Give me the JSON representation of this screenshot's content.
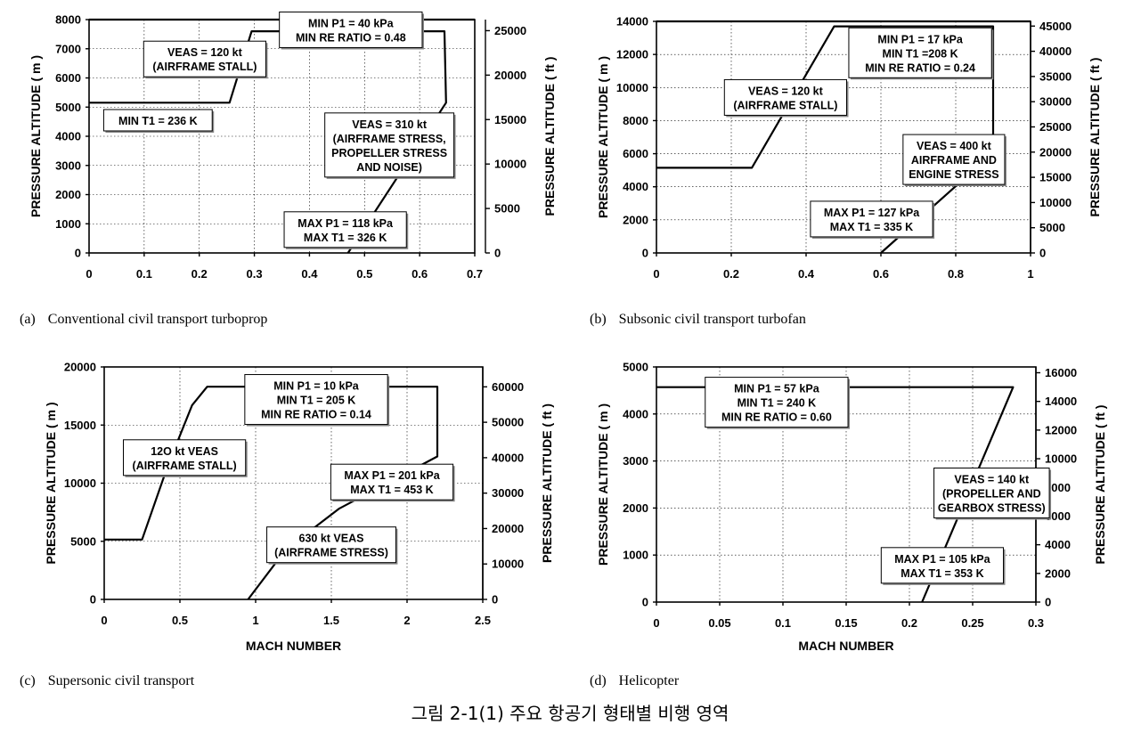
{
  "figure_title": "그림 2-1(1) 주요 항공기 형태별 비행 영역",
  "chart_data": [
    {
      "type": "line",
      "label": "(a)",
      "caption": "Conventional civil transport turboprop",
      "xlabel": "",
      "ylabel": "PRESSURE ALTITUDE ( m )",
      "ylabel_right": "PRESSURE ALTITUDE ( ft )",
      "xlim": [
        0,
        0.7
      ],
      "ylim": [
        0,
        8000
      ],
      "x_ticks": [
        "0",
        "0.1",
        "0.2",
        "0.3",
        "0.4",
        "0.5",
        "0.6",
        "0.7"
      ],
      "y_ticks": [
        "0",
        "1000",
        "2000",
        "3000",
        "4000",
        "5000",
        "6000",
        "7000",
        "8000"
      ],
      "y2lim": [
        0,
        26246
      ],
      "y2_ticks": [
        "0",
        "5000",
        "10000",
        "15000",
        "20000",
        "25000"
      ],
      "series": [
        {
          "name": "flight envelope",
          "points": [
            [
              0,
              5150
            ],
            [
              0.255,
              5150
            ],
            [
              0.295,
              7600
            ],
            [
              0.645,
              7600
            ],
            [
              0.648,
              5150
            ],
            [
              0.47,
              0
            ]
          ]
        }
      ],
      "top_line": 8000,
      "annotations": [
        {
          "text": [
            "VEAS = 120 kt",
            "(AIRFRAME STALL)"
          ],
          "x": 0.21,
          "y": 6650
        },
        {
          "text": [
            "MIN P1 = 40 kPa",
            "MIN RE RATIO = 0.48"
          ],
          "x": 0.475,
          "y": 7650
        },
        {
          "text": [
            "MIN T1 = 236 K"
          ],
          "x": 0.125,
          "y": 4550
        },
        {
          "text": [
            "VEAS = 310 kt",
            "(AIRFRAME STRESS,",
            "PROPELLER STRESS",
            "AND NOISE)"
          ],
          "x": 0.545,
          "y": 3700
        },
        {
          "text": [
            "MAX P1 = 118 kPa",
            "MAX T1 = 326 K"
          ],
          "x": 0.465,
          "y": 800
        }
      ]
    },
    {
      "type": "line",
      "label": "(b)",
      "caption": "Subsonic civil transport turbofan",
      "xlabel": "",
      "ylabel": "PRESSURE ALTITUDE ( m )",
      "ylabel_right": "PRESSURE ALTITUDE ( ft )",
      "xlim": [
        0,
        1
      ],
      "ylim": [
        0,
        14000
      ],
      "x_ticks": [
        "0",
        "0.2",
        "0.4",
        "0.6",
        "0.8",
        "1"
      ],
      "y_ticks": [
        "0",
        "2000",
        "4000",
        "6000",
        "8000",
        "10000",
        "12000",
        "14000"
      ],
      "y2lim": [
        0,
        45932
      ],
      "y2_ticks": [
        "0",
        "5000",
        "10000",
        "15000",
        "20000",
        "25000",
        "30000",
        "35000",
        "40000",
        "45000"
      ],
      "series": [
        {
          "name": "flight envelope",
          "points": [
            [
              0,
              5150
            ],
            [
              0.255,
              5150
            ],
            [
              0.475,
              13700
            ],
            [
              0.9,
              13700
            ],
            [
              0.9,
              6050
            ],
            [
              0.6,
              0
            ]
          ]
        }
      ],
      "top_line": 14000,
      "annotations": [
        {
          "text": [
            "VEAS = 120 kt",
            "(AIRFRAME STALL)"
          ],
          "x": 0.345,
          "y": 9400
        },
        {
          "text": [
            "MIN P1 = 17 kPa",
            "MIN T1 =208 K",
            "MIN RE RATIO = 0.24"
          ],
          "x": 0.705,
          "y": 12100
        },
        {
          "text": [
            "VEAS = 400 kt",
            "AIRFRAME AND",
            "ENGINE STRESS"
          ],
          "x": 0.795,
          "y": 5650
        },
        {
          "text": [
            "MAX P1 = 127 kPa",
            "MAX T1 = 335 K"
          ],
          "x": 0.575,
          "y": 2050
        }
      ]
    },
    {
      "type": "line",
      "label": "(c)",
      "caption": "Supersonic civil transport",
      "xlabel": "MACH NUMBER",
      "ylabel": "PRESSURE ALTITUDE ( m )",
      "ylabel_right": "PRESSURE ALTITUDE ( ft )",
      "xlim": [
        0,
        2.5
      ],
      "ylim": [
        0,
        20000
      ],
      "x_ticks": [
        "0",
        "0.5",
        "1",
        "1.5",
        "2",
        "2.5"
      ],
      "y_ticks": [
        "0",
        "5000",
        "10000",
        "15000",
        "20000"
      ],
      "y2lim": [
        0,
        65617
      ],
      "y2_ticks": [
        "0",
        "10000",
        "20000",
        "30000",
        "40000",
        "50000",
        "60000"
      ],
      "series": [
        {
          "name": "flight envelope",
          "points": [
            [
              0,
              5150
            ],
            [
              0.25,
              5150
            ],
            [
              0.42,
              11500
            ],
            [
              0.58,
              16700
            ],
            [
              0.68,
              18300
            ],
            [
              2.2,
              18300
            ],
            [
              2.2,
              12300
            ],
            [
              1.55,
              7800
            ],
            [
              1.2,
              4300
            ],
            [
              0.95,
              0
            ]
          ]
        }
      ],
      "annotations": [
        {
          "text": [
            "MIN P1 = 10 kPa",
            "MIN T1 = 205 K",
            "MIN RE RATIO = 0.14"
          ],
          "x": 1.4,
          "y": 17200
        },
        {
          "text": [
            "12O kt VEAS",
            "(AIRFRAME STALL)"
          ],
          "x": 0.53,
          "y": 12200
        },
        {
          "text": [
            "MAX P1 = 201 kPa",
            "MAX T1 = 453 K"
          ],
          "x": 1.9,
          "y": 10100
        },
        {
          "text": [
            "630 kt VEAS",
            "(AIRFRAME STRESS)"
          ],
          "x": 1.5,
          "y": 4700
        }
      ]
    },
    {
      "type": "line",
      "label": "(d)",
      "caption": "Helicopter",
      "xlabel": "MACH NUMBER",
      "ylabel": "PRESSURE ALTITUDE ( m )",
      "ylabel_right": "PRESSURE ALTITUDE ( ft )",
      "xlim": [
        0,
        0.3
      ],
      "ylim": [
        0,
        5000
      ],
      "x_ticks": [
        "0",
        "0.05",
        "0.1",
        "0.15",
        "0.2",
        "0.25",
        "0.3"
      ],
      "y_ticks": [
        "0",
        "1000",
        "2000",
        "3000",
        "4000",
        "5000"
      ],
      "y2lim": [
        0,
        16404
      ],
      "y2_ticks": [
        "0",
        "2000",
        "4000",
        "6000",
        "8000",
        "10000",
        "12000",
        "14000",
        "16000"
      ],
      "series": [
        {
          "name": "flight envelope",
          "points": [
            [
              0,
              4570
            ],
            [
              0.282,
              4570
            ],
            [
              0.21,
              0
            ]
          ]
        }
      ],
      "annotations": [
        {
          "text": [
            "MIN P1 = 57 kPa",
            "MIN T1 = 240 K",
            "MIN RE RATIO = 0.60"
          ],
          "x": 0.095,
          "y": 4250
        },
        {
          "text": [
            "VEAS = 140 kt",
            "(PROPELLER AND",
            "GEARBOX STRESS)"
          ],
          "x": 0.265,
          "y": 2320
        },
        {
          "text": [
            "MAX P1 = 105 kPa",
            "MAX T1 = 353 K"
          ],
          "x": 0.226,
          "y": 780
        }
      ]
    }
  ]
}
